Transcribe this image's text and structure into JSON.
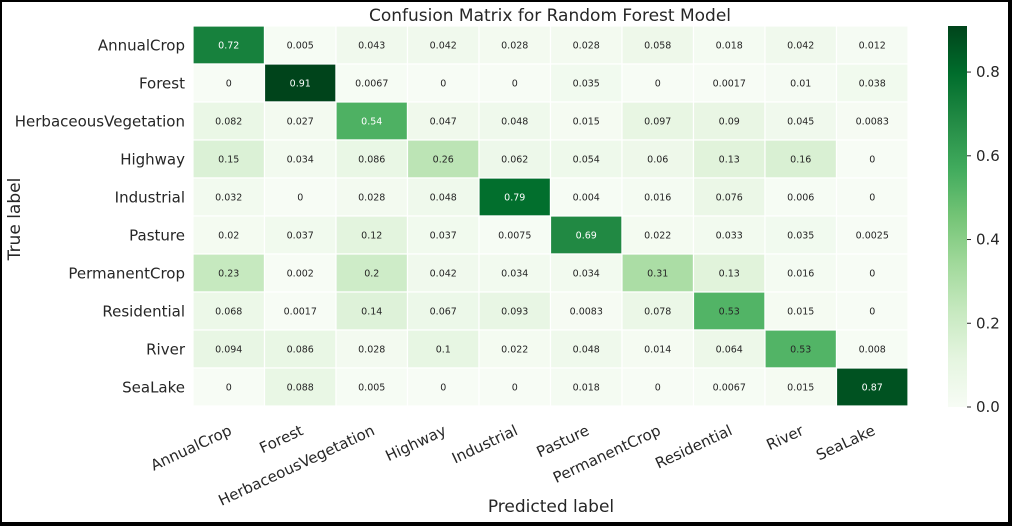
{
  "chart_data": {
    "type": "heatmap",
    "title": "Confusion Matrix for Random Forest Model",
    "xlabel": "Predicted label",
    "ylabel": "True label",
    "x_categories": [
      "AnnualCrop",
      "Forest",
      "HerbaceousVegetation",
      "Highway",
      "Industrial",
      "Pasture",
      "PermanentCrop",
      "Residential",
      "River",
      "SeaLake"
    ],
    "y_categories": [
      "AnnualCrop",
      "Forest",
      "HerbaceousVegetation",
      "Highway",
      "Industrial",
      "Pasture",
      "PermanentCrop",
      "Residential",
      "River",
      "SeaLake"
    ],
    "values": [
      [
        "0.72",
        "0.005",
        "0.043",
        "0.042",
        "0.028",
        "0.028",
        "0.058",
        "0.018",
        "0.042",
        "0.012"
      ],
      [
        "0",
        "0.91",
        "0.0067",
        "0",
        "0",
        "0.035",
        "0",
        "0.0017",
        "0.01",
        "0.038"
      ],
      [
        "0.082",
        "0.027",
        "0.54",
        "0.047",
        "0.048",
        "0.015",
        "0.097",
        "0.09",
        "0.045",
        "0.0083"
      ],
      [
        "0.15",
        "0.034",
        "0.086",
        "0.26",
        "0.062",
        "0.054",
        "0.06",
        "0.13",
        "0.16",
        "0"
      ],
      [
        "0.032",
        "0",
        "0.028",
        "0.048",
        "0.79",
        "0.004",
        "0.016",
        "0.076",
        "0.006",
        "0"
      ],
      [
        "0.02",
        "0.037",
        "0.12",
        "0.037",
        "0.0075",
        "0.69",
        "0.022",
        "0.033",
        "0.035",
        "0.0025"
      ],
      [
        "0.23",
        "0.002",
        "0.2",
        "0.042",
        "0.034",
        "0.034",
        "0.31",
        "0.13",
        "0.016",
        "0"
      ],
      [
        "0.068",
        "0.0017",
        "0.14",
        "0.067",
        "0.093",
        "0.0083",
        "0.078",
        "0.53",
        "0.015",
        "0"
      ],
      [
        "0.094",
        "0.086",
        "0.028",
        "0.1",
        "0.022",
        "0.048",
        "0.014",
        "0.064",
        "0.53",
        "0.008"
      ],
      [
        "0",
        "0.088",
        "0.005",
        "0",
        "0",
        "0.018",
        "0",
        "0.0067",
        "0.015",
        "0.87"
      ]
    ],
    "colorbar": {
      "min": 0,
      "max": 0.91,
      "ticks": [
        "0.0",
        "0.2",
        "0.4",
        "0.6",
        "0.8"
      ],
      "colormap": "Greens",
      "color_stops": [
        "#f7fcf5",
        "#e5f5e0",
        "#c7e9c0",
        "#a1d99b",
        "#74c476",
        "#41ab5d",
        "#238b45",
        "#006d2c",
        "#00441b"
      ]
    },
    "xtick_rotation_deg": -25,
    "grid": false,
    "legend": "colorbar-right"
  }
}
